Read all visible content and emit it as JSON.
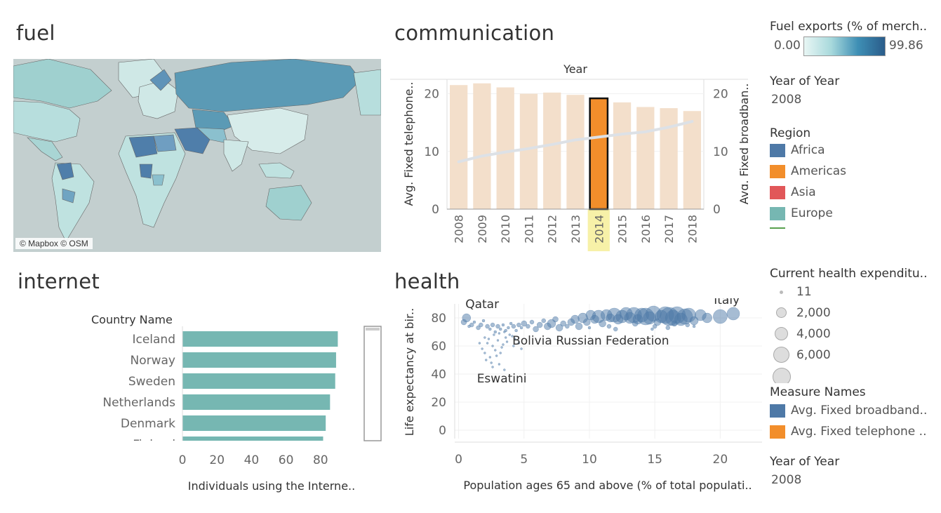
{
  "panels": {
    "fuel": {
      "title": "fuel",
      "attribution": "© Mapbox © OSM"
    },
    "communication": {
      "title": "communication"
    },
    "internet": {
      "title": "internet"
    },
    "health": {
      "title": "health"
    }
  },
  "sidebar": {
    "fuel_legend": {
      "title": "Fuel exports (% of merch..",
      "min": "0.00",
      "max": "99.86"
    },
    "year_filter_1": {
      "title": "Year of Year",
      "value": "2008"
    },
    "region": {
      "title": "Region",
      "items": [
        {
          "label": "Africa",
          "color": "#4e79a7"
        },
        {
          "label": "Americas",
          "color": "#f28e2b"
        },
        {
          "label": "Asia",
          "color": "#e15759"
        },
        {
          "label": "Europe",
          "color": "#76b7b2"
        }
      ]
    },
    "health_size": {
      "title": "Current health expenditu..",
      "items": [
        "11",
        "2,000",
        "4,000",
        "6,000"
      ]
    },
    "measure_names": {
      "title": "Measure Names",
      "items": [
        {
          "label": "Avg. Fixed broadband..",
          "color": "#4e79a7"
        },
        {
          "label": "Avg. Fixed telephone ..",
          "color": "#f28e2b"
        }
      ]
    },
    "year_filter_2": {
      "title": "Year of Year",
      "value": "2008"
    }
  },
  "chart_data": [
    {
      "id": "communication",
      "type": "bar",
      "title": "Year",
      "categories": [
        "2008",
        "2009",
        "2010",
        "2011",
        "2012",
        "2013",
        "2014",
        "2015",
        "2016",
        "2017",
        "2018"
      ],
      "series": [
        {
          "name": "Avg. Fixed telephone ..",
          "type": "bar",
          "values": [
            21.5,
            21.8,
            21.1,
            20.0,
            20.2,
            19.8,
            19.2,
            18.5,
            17.7,
            17.5,
            17.0
          ],
          "highlight": "2014"
        },
        {
          "name": "Avg. Fixed broadband..",
          "type": "line",
          "values": [
            8.2,
            9.2,
            9.9,
            10.5,
            11.2,
            12.0,
            12.5,
            13.0,
            13.4,
            14.2,
            15.2
          ]
        }
      ],
      "ylabel": "Avg. Fixed telephone..",
      "y2label": "Avg. Fixed broadban..",
      "ylim": [
        0,
        22.5
      ],
      "yticks": [
        0,
        10,
        20
      ],
      "colors": {
        "bar": "#f3dfcb",
        "highlight": "#f28e2b",
        "line": "#dde1e6",
        "highlight_band": "#f7f1a8"
      }
    },
    {
      "id": "internet",
      "type": "bar",
      "orientation": "horizontal",
      "column_header": "Country Name",
      "categories": [
        "Iceland",
        "Norway",
        "Sweden",
        "Netherlands",
        "Denmark",
        "Finland"
      ],
      "values": [
        90,
        89,
        88.5,
        85.5,
        83,
        81.5
      ],
      "xlabel": "Individuals using the Interne..",
      "xlim": [
        0,
        100
      ],
      "xticks": [
        0,
        20,
        40,
        60,
        80
      ],
      "color": "#76b7b2"
    },
    {
      "id": "health",
      "type": "scatter",
      "xlabel": "Population ages 65 and above (% of total populati..",
      "ylabel": "Life expectancy at bir..",
      "xlim": [
        -0.3,
        23.2
      ],
      "ylim": [
        -6,
        90
      ],
      "xticks": [
        0,
        5,
        10,
        15,
        20
      ],
      "yticks": [
        0,
        20,
        40,
        60,
        80
      ],
      "annotations": [
        {
          "text": "Qatar",
          "x": 1.8,
          "y": 87
        },
        {
          "text": "Italy",
          "x": 20.5,
          "y": 90
        },
        {
          "text": "Bolivia Russian Federation",
          "x": 10.1,
          "y": 61
        },
        {
          "text": "Eswatini",
          "x": 3.3,
          "y": 34
        }
      ],
      "color": "#4e79a7",
      "points": [
        [
          0.4,
          77,
          4
        ],
        [
          0.6,
          80,
          6
        ],
        [
          0.8,
          74,
          2
        ],
        [
          1.0,
          75,
          3
        ],
        [
          1.2,
          77,
          2
        ],
        [
          1.5,
          73,
          3
        ],
        [
          1.7,
          75,
          3
        ],
        [
          1.9,
          78,
          2
        ],
        [
          2.2,
          74,
          3
        ],
        [
          2.4,
          72,
          2
        ],
        [
          2.6,
          75,
          3
        ],
        [
          2.8,
          70,
          2
        ],
        [
          3.0,
          74,
          3
        ],
        [
          3.2,
          72,
          2
        ],
        [
          3.4,
          75,
          2
        ],
        [
          3.6,
          71,
          2
        ],
        [
          3.8,
          73,
          2
        ],
        [
          4.0,
          76,
          2
        ],
        [
          4.2,
          74,
          3
        ],
        [
          4.4,
          71,
          2
        ],
        [
          4.6,
          75,
          3
        ],
        [
          4.8,
          73,
          2
        ],
        [
          5.0,
          76,
          4
        ],
        [
          5.3,
          74,
          3
        ],
        [
          5.6,
          77,
          3
        ],
        [
          5.9,
          72,
          4
        ],
        [
          6.2,
          75,
          4
        ],
        [
          6.5,
          78,
          3
        ],
        [
          6.8,
          74,
          5
        ],
        [
          7.1,
          76,
          6
        ],
        [
          7.4,
          79,
          4
        ],
        [
          7.7,
          73,
          5
        ],
        [
          8.0,
          76,
          4
        ],
        [
          8.3,
          74,
          3
        ],
        [
          8.6,
          77,
          5
        ],
        [
          8.9,
          79,
          6
        ],
        [
          9.2,
          74,
          5
        ],
        [
          9.5,
          80,
          7
        ],
        [
          9.8,
          77,
          5
        ],
        [
          10.1,
          82,
          7
        ],
        [
          10.4,
          79,
          6
        ],
        [
          10.7,
          81,
          9
        ],
        [
          11.0,
          76,
          5
        ],
        [
          11.3,
          82,
          8
        ],
        [
          11.6,
          80,
          6
        ],
        [
          11.9,
          82,
          10
        ],
        [
          12.2,
          79,
          7
        ],
        [
          12.5,
          81,
          9
        ],
        [
          12.8,
          83,
          9
        ],
        [
          13.1,
          80,
          8
        ],
        [
          13.4,
          82,
          11
        ],
        [
          13.7,
          79,
          7
        ],
        [
          14.0,
          82,
          10
        ],
        [
          14.3,
          81,
          12
        ],
        [
          14.6,
          80,
          9
        ],
        [
          14.9,
          83,
          11
        ],
        [
          15.2,
          77,
          5
        ],
        [
          15.5,
          81,
          9
        ],
        [
          15.8,
          82,
          12
        ],
        [
          16.1,
          81,
          13
        ],
        [
          16.4,
          80,
          11
        ],
        [
          16.7,
          82,
          12
        ],
        [
          17.0,
          79,
          9
        ],
        [
          17.3,
          81,
          11
        ],
        [
          17.6,
          82,
          10
        ],
        [
          18.0,
          78,
          6
        ],
        [
          18.5,
          82,
          8
        ],
        [
          19.0,
          80,
          7
        ],
        [
          20.0,
          81,
          10
        ],
        [
          21.0,
          83,
          9
        ],
        [
          12.0,
          72,
          3
        ],
        [
          13.5,
          76,
          4
        ],
        [
          15.0,
          74,
          3
        ],
        [
          16.5,
          76,
          4
        ],
        [
          17.5,
          75,
          3
        ],
        [
          14.8,
          72,
          2
        ],
        [
          11.5,
          74,
          3
        ],
        [
          10.0,
          73,
          2
        ],
        [
          16.0,
          73,
          3
        ],
        [
          18.0,
          74,
          2
        ],
        [
          1.8,
          58,
          1.5
        ],
        [
          2.0,
          55,
          1.5
        ],
        [
          2.2,
          62,
          1.5
        ],
        [
          2.4,
          52,
          1.5
        ],
        [
          2.6,
          60,
          1.5
        ],
        [
          2.8,
          57,
          1.5
        ],
        [
          3.0,
          64,
          1.5
        ],
        [
          3.2,
          55,
          1.5
        ],
        [
          3.4,
          61,
          1.5
        ],
        [
          3.6,
          66,
          1.5
        ],
        [
          2.1,
          50,
          1.5
        ],
        [
          2.5,
          48,
          1.5
        ],
        [
          2.9,
          53,
          1.5
        ],
        [
          3.3,
          59,
          1.5
        ],
        [
          3.7,
          63,
          1.5
        ],
        [
          4.1,
          67,
          1.5
        ],
        [
          2.3,
          65,
          1.5
        ],
        [
          2.7,
          68,
          1.5
        ],
        [
          3.1,
          69,
          1.5
        ],
        [
          3.5,
          70,
          1.5
        ],
        [
          3.9,
          68,
          1.5
        ],
        [
          4.3,
          65,
          1.5
        ],
        [
          4.6,
          62,
          1.5
        ],
        [
          1.6,
          62,
          1.5
        ],
        [
          2.0,
          66,
          1.5
        ],
        [
          2.6,
          45,
          1.5
        ],
        [
          3.1,
          47,
          1.5
        ],
        [
          3.5,
          43,
          1.5
        ],
        [
          4.2,
          60,
          1.5
        ],
        [
          4.8,
          58,
          1.5
        ]
      ]
    }
  ]
}
